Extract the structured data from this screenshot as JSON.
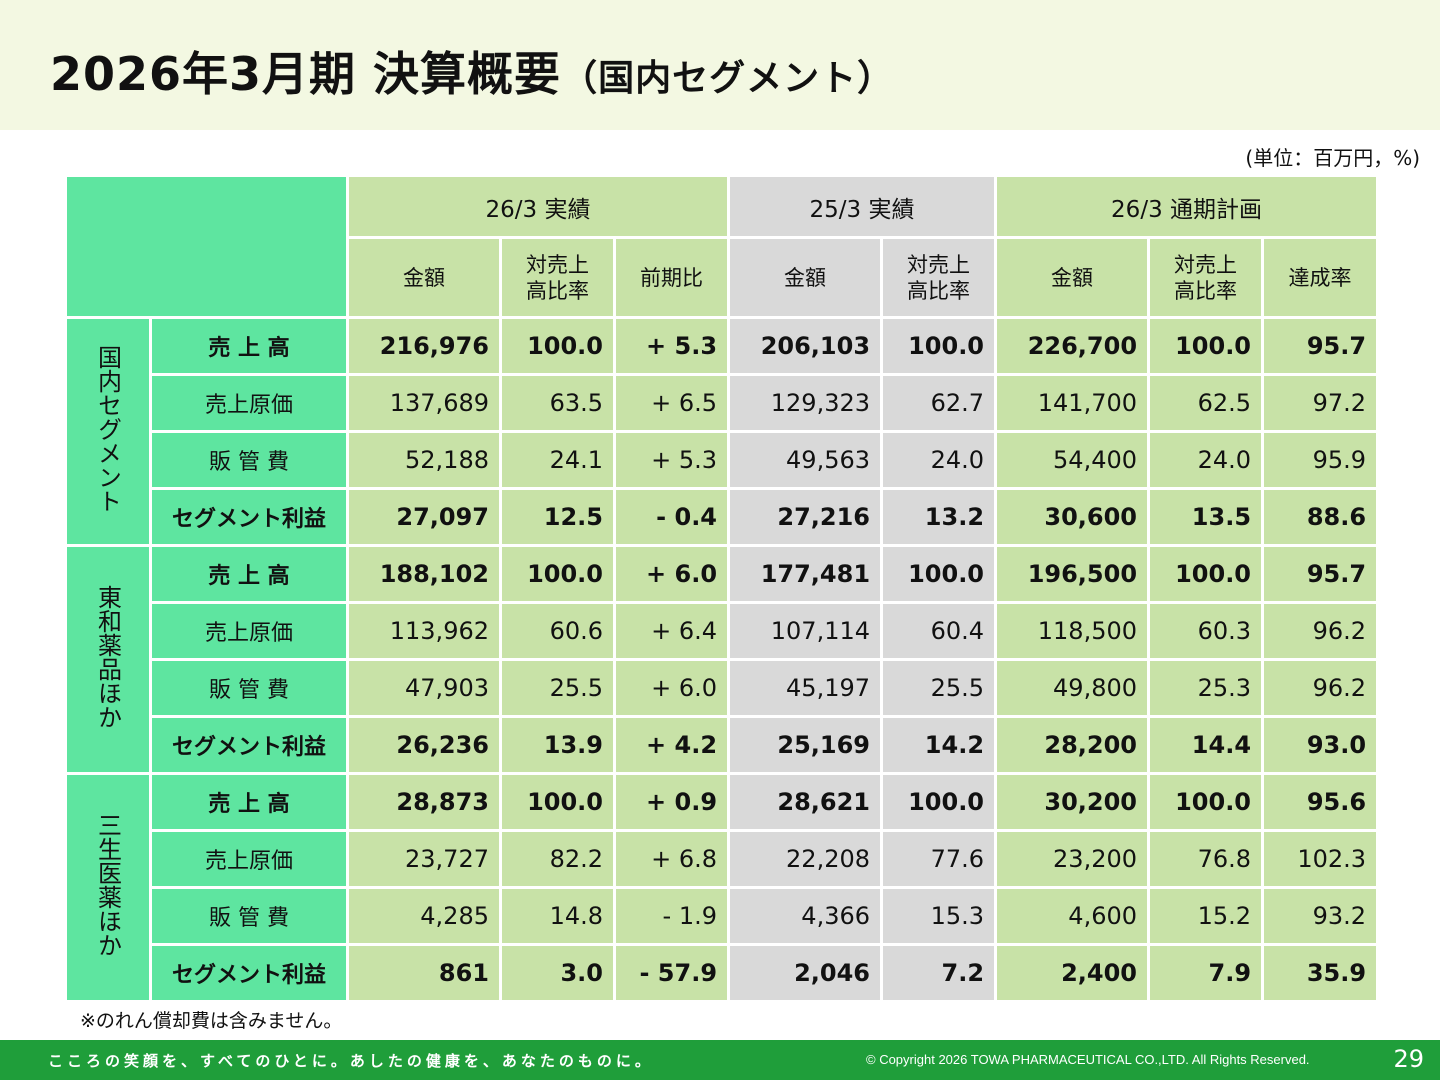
{
  "title": {
    "main": "2026年3月期 決算概要",
    "sub": "（国内セグメント）"
  },
  "unit_note": "(単位：百万円，%)",
  "header": {
    "group_2603": "26/3 実績",
    "group_2503": "25/3 実績",
    "group_plan": "26/3 通期計画",
    "amount": "金額",
    "ratio_line1": "対売上",
    "ratio_line2": "高比率",
    "yoy": "前期比",
    "achievement": "達成率"
  },
  "segments": [
    {
      "label": "国内セグメント",
      "rows": [
        {
          "item": "売 上 高",
          "bold": true,
          "v": [
            "216,976",
            "100.0",
            "+ 5.3",
            "206,103",
            "100.0",
            "226,700",
            "100.0",
            "95.7"
          ]
        },
        {
          "item": "売上原価",
          "bold": false,
          "v": [
            "137,689",
            "63.5",
            "+ 6.5",
            "129,323",
            "62.7",
            "141,700",
            "62.5",
            "97.2"
          ]
        },
        {
          "item": "販 管 費",
          "bold": false,
          "v": [
            "52,188",
            "24.1",
            "+ 5.3",
            "49,563",
            "24.0",
            "54,400",
            "24.0",
            "95.9"
          ]
        },
        {
          "item": "セグメント利益",
          "bold": true,
          "v": [
            "27,097",
            "12.5",
            "- 0.4",
            "27,216",
            "13.2",
            "30,600",
            "13.5",
            "88.6"
          ]
        }
      ]
    },
    {
      "label": "東和薬品ほか",
      "rows": [
        {
          "item": "売 上 高",
          "bold": true,
          "v": [
            "188,102",
            "100.0",
            "+ 6.0",
            "177,481",
            "100.0",
            "196,500",
            "100.0",
            "95.7"
          ]
        },
        {
          "item": "売上原価",
          "bold": false,
          "v": [
            "113,962",
            "60.6",
            "+ 6.4",
            "107,114",
            "60.4",
            "118,500",
            "60.3",
            "96.2"
          ]
        },
        {
          "item": "販 管 費",
          "bold": false,
          "v": [
            "47,903",
            "25.5",
            "+ 6.0",
            "45,197",
            "25.5",
            "49,800",
            "25.3",
            "96.2"
          ]
        },
        {
          "item": "セグメント利益",
          "bold": true,
          "v": [
            "26,236",
            "13.9",
            "+ 4.2",
            "25,169",
            "14.2",
            "28,200",
            "14.4",
            "93.0"
          ]
        }
      ]
    },
    {
      "label": "三生医薬ほか",
      "rows": [
        {
          "item": "売 上 高",
          "bold": true,
          "v": [
            "28,873",
            "100.0",
            "+ 0.9",
            "28,621",
            "100.0",
            "30,200",
            "100.0",
            "95.6"
          ]
        },
        {
          "item": "売上原価",
          "bold": false,
          "v": [
            "23,727",
            "82.2",
            "+ 6.8",
            "22,208",
            "77.6",
            "23,200",
            "76.8",
            "102.3"
          ]
        },
        {
          "item": "販 管 費",
          "bold": false,
          "v": [
            "4,285",
            "14.8",
            "- 1.9",
            "4,366",
            "15.3",
            "4,600",
            "15.2",
            "93.2"
          ]
        },
        {
          "item": "セグメント利益",
          "bold": true,
          "v": [
            "861",
            "3.0",
            "- 57.9",
            "2,046",
            "7.2",
            "2,400",
            "7.9",
            "35.9"
          ]
        }
      ]
    }
  ],
  "footnote": "※のれん償却費は含みません。",
  "footer": {
    "slogan": "こころの笑顔を、すべてのひとに。あしたの健康を、あなたのものに。",
    "copyright": "© Copyright 2026 TOWA PHARMACEUTICAL CO.,LTD. All Rights Reserved.",
    "page_number": "29"
  }
}
